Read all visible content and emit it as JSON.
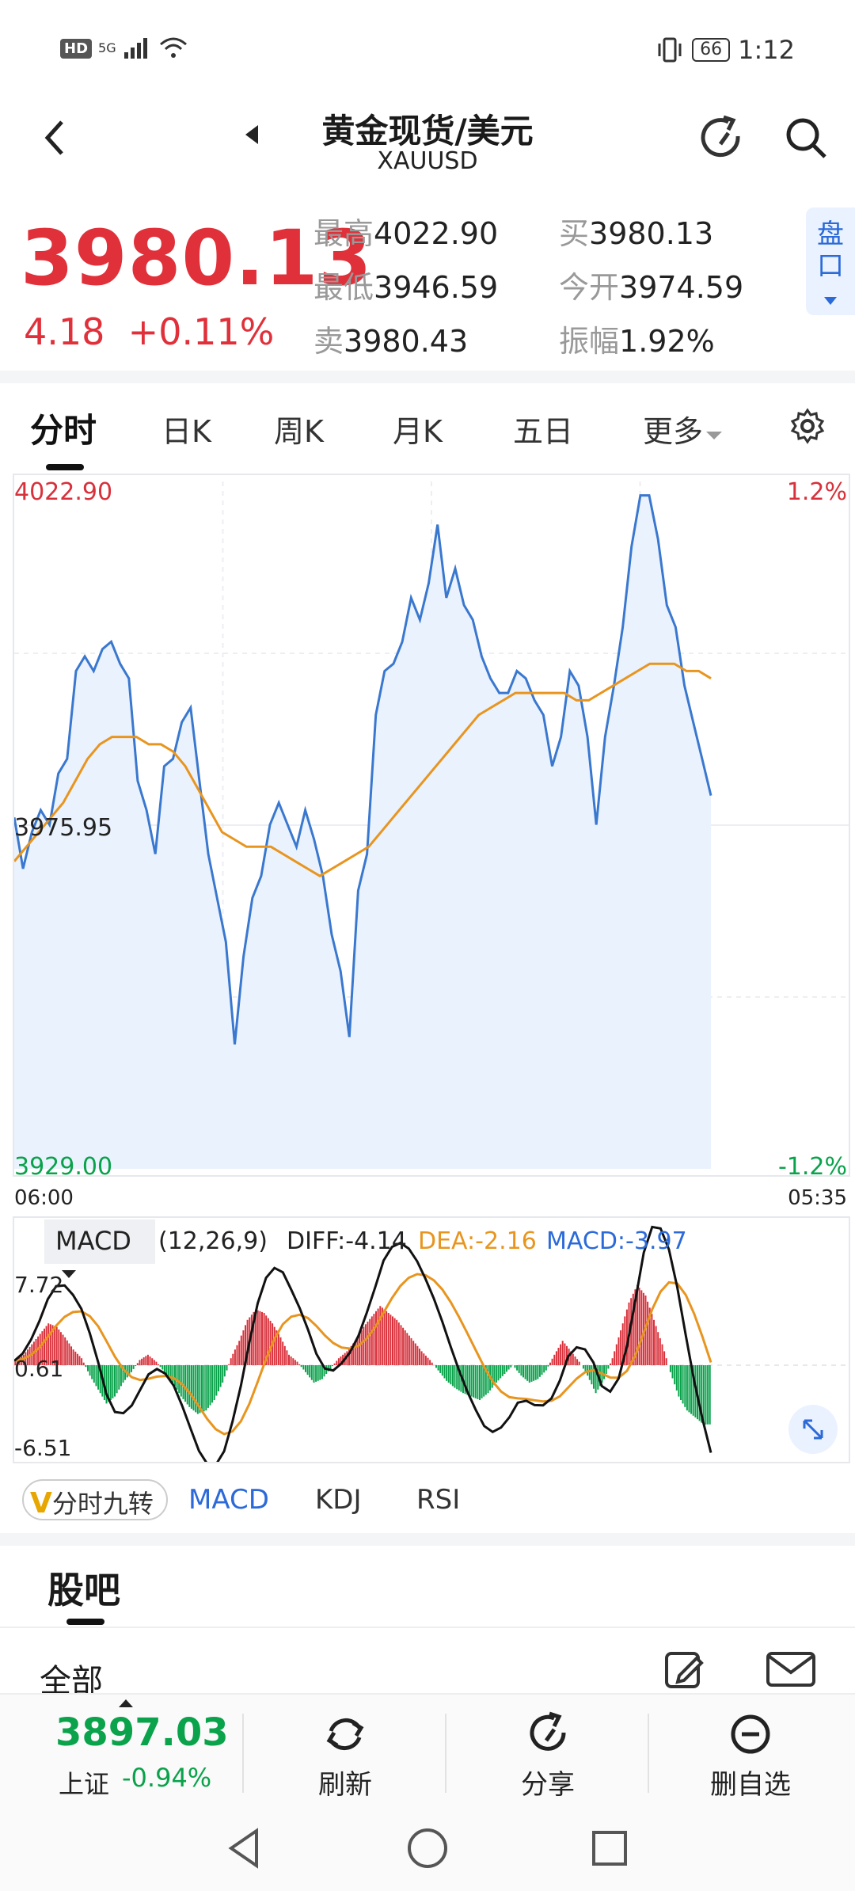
{
  "status": {
    "network": "5G",
    "battery": "66",
    "time": "1:12"
  },
  "header": {
    "title": "黄金现货/美元",
    "symbol": "XAUUSD"
  },
  "quote": {
    "price": "3980.13",
    "change": "4.18",
    "change_pct": "+0.11%",
    "high_label": "最高",
    "high": "4022.90",
    "low_label": "最低",
    "low": "3946.59",
    "sell_label": "卖",
    "sell": "3980.43",
    "buy_label": "买",
    "buy": "3980.13",
    "open_label": "今开",
    "open": "3974.59",
    "amp_label": "振幅",
    "amp": "1.92%",
    "pankou": "盘口"
  },
  "tabs": [
    "分时",
    "日K",
    "周K",
    "月K",
    "五日",
    "更多"
  ],
  "chart": {
    "y_max_label": "4022.90",
    "y_mid_label": "3975.95",
    "y_min_label": "3929.00",
    "pct_max_label": "1.2%",
    "pct_min_label": "-1.2%",
    "time_start": "06:00",
    "time_end": "05:35",
    "colors": {
      "price": "#3a78cf",
      "avg": "#e8951f",
      "fill": "#eaf2fd",
      "up": "#d8313b",
      "down": "#0aa24b"
    }
  },
  "chart_data": [
    {
      "type": "line",
      "xlim": [
        0,
        100
      ],
      "ylim": [
        3929.0,
        4022.9
      ],
      "series": [
        {
          "values": [
            3977,
            3970,
            3975,
            3978,
            3976,
            3983,
            3985,
            3997,
            3999,
            3997,
            4000,
            4001,
            3998,
            3996,
            3982,
            3978,
            3972,
            3984,
            3985,
            3990,
            3992,
            3982,
            3972,
            3966,
            3960,
            3946,
            3958,
            3966,
            3969,
            3976,
            3979,
            3976,
            3973,
            3978,
            3974,
            3969,
            3961,
            3956,
            3947,
            3967,
            3972,
            3991,
            3997,
            3998,
            4001,
            4007,
            4004,
            4009,
            4017,
            4007,
            4011,
            4006,
            4004,
            3999,
            3996,
            3994,
            3994,
            3997,
            3996,
            3993,
            3991,
            3984,
            3988,
            3997,
            3995,
            3988,
            3976,
            3988,
            3995,
            4003,
            4014,
            4021,
            4021,
            4015,
            4006,
            4003,
            3995,
            3990,
            3985,
            3980
          ],
          "name": ""
        },
        {
          "values": [
            3971,
            3973,
            3975,
            3977,
            3979,
            3982,
            3985,
            3987,
            3988,
            3988,
            3988,
            3987,
            3987,
            3986,
            3984,
            3981,
            3978,
            3975,
            3974,
            3973,
            3973,
            3973,
            3972,
            3971,
            3970,
            3969,
            3970,
            3971,
            3972,
            3973,
            3975,
            3977,
            3979,
            3981,
            3983,
            3985,
            3987,
            3989,
            3991,
            3992,
            3993,
            3994,
            3994,
            3994,
            3994,
            3994,
            3993,
            3993,
            3994,
            3995,
            3996,
            3997,
            3998,
            3998,
            3998,
            3997,
            3997,
            3996
          ],
          "name": ""
        }
      ]
    },
    {
      "type": "bar",
      "title": "MACD",
      "params": "(12,26,9)",
      "DIFF": -4.14,
      "DEA": -2.16,
      "MACD": -3.97,
      "ylim": [
        -6.51,
        7.72
      ],
      "mid": 0.61,
      "values": [
        0.3,
        0.6,
        1.2,
        1.8,
        2.4,
        2.2,
        1.6,
        0.9,
        0.4,
        -0.6,
        -1.4,
        -2.2,
        -1.8,
        -1.0,
        -0.4,
        0.3,
        0.6,
        0.2,
        -0.4,
        -1.0,
        -1.8,
        -2.4,
        -2.8,
        -2.6,
        -2.0,
        -1.0,
        0.4,
        1.4,
        2.6,
        3.2,
        3.0,
        2.4,
        1.6,
        0.6,
        0.2,
        -0.4,
        -1.0,
        -0.8,
        -0.2,
        0.4,
        0.8,
        1.4,
        2.2,
        2.8,
        3.4,
        3.0,
        2.6,
        2.0,
        1.4,
        0.8,
        0.3,
        -0.3,
        -0.9,
        -1.3,
        -1.6,
        -1.8,
        -2.0,
        -1.6,
        -1.0,
        -0.5,
        0.0,
        -0.6,
        -1.0,
        -0.8,
        -0.3,
        0.6,
        1.4,
        0.8,
        0.2,
        -0.6,
        -1.6,
        -0.8,
        0.4,
        2.0,
        3.6,
        4.6,
        4.0,
        2.6,
        1.2,
        -0.4,
        -1.8,
        -2.6,
        -3.0,
        -3.4
      ]
    }
  ],
  "macd": {
    "label": "MACD",
    "params": "(12,26,9)",
    "diff": "DIFF:-4.14",
    "dea": "DEA:-2.16",
    "macd": "MACD:-3.97",
    "top": "7.72",
    "mid": "0.61",
    "bottom": "-6.51"
  },
  "indicators": {
    "jiuzhuan": "分时九转",
    "items": [
      "MACD",
      "KDJ",
      "RSI"
    ]
  },
  "forum": {
    "title": "股吧",
    "all": "全部"
  },
  "toolbar": {
    "index_value": "3897.03",
    "index_name": "上证",
    "index_change": "-0.94%",
    "refresh": "刷新",
    "share": "分享",
    "remove": "删自选"
  }
}
